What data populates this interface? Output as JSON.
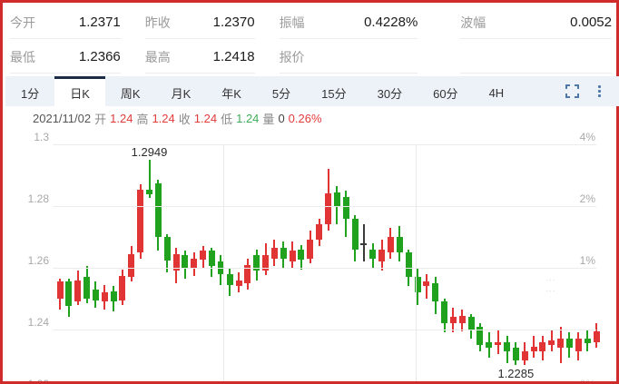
{
  "quote": {
    "cells": [
      {
        "label": "今开",
        "value": "1.2371"
      },
      {
        "label": "昨收",
        "value": "1.2370"
      },
      {
        "label": "振幅",
        "value": "0.4228%"
      },
      {
        "label": "波幅",
        "value": "0.0052"
      },
      {
        "label": "最低",
        "value": "1.2366"
      },
      {
        "label": "最高",
        "value": "1.2418"
      },
      {
        "label": "报价",
        "value": ""
      },
      {
        "label": "",
        "value": ""
      }
    ]
  },
  "tabs": [
    {
      "label": "1分",
      "active": false
    },
    {
      "label": "日K",
      "active": true
    },
    {
      "label": "周K",
      "active": false
    },
    {
      "label": "月K",
      "active": false
    },
    {
      "label": "年K",
      "active": false
    },
    {
      "label": "5分",
      "active": false
    },
    {
      "label": "15分",
      "active": false
    },
    {
      "label": "30分",
      "active": false
    },
    {
      "label": "60分",
      "active": false
    },
    {
      "label": "4H",
      "active": false
    }
  ],
  "toolbar_icons": {
    "fullscreen": "fullscreen-icon",
    "menu": "kebab-menu-icon"
  },
  "info_line": [
    {
      "text": "2021/11/02",
      "tone": "date"
    },
    {
      "text": "开",
      "tone": "label"
    },
    {
      "text": "1.24",
      "tone": "up"
    },
    {
      "text": "高",
      "tone": "label"
    },
    {
      "text": "1.24",
      "tone": "up"
    },
    {
      "text": "收",
      "tone": "label"
    },
    {
      "text": "1.24",
      "tone": "up"
    },
    {
      "text": "低",
      "tone": "label"
    },
    {
      "text": "1.24",
      "tone": "down"
    },
    {
      "text": "量",
      "tone": "label"
    },
    {
      "text": "0",
      "tone": "neutral"
    },
    {
      "text": "0.26%",
      "tone": "up"
    }
  ],
  "watermark_text": "⋮⋮",
  "chart_data": {
    "type": "candlestick",
    "title": "",
    "y_axis_left": [
      "1.3",
      "1.28",
      "1.26",
      "1.24"
    ],
    "y_axis_left_partial": "1.22",
    "y_axis_right": [
      "4%",
      "2%",
      "1%"
    ],
    "y_axis_right_partial": "0%",
    "price_top_line": 1.3,
    "price_step_per_line": 0.02,
    "ylim": [
      1.222,
      1.302
    ],
    "grid": true,
    "colors": {
      "up": "#e13434",
      "down": "#21a21f",
      "doji_dark": "#3a3a3a"
    },
    "annotations": [
      {
        "text": "1.2949",
        "candle_index": 10,
        "placement": "above"
      },
      {
        "text": "1.2285",
        "candle_index": 51,
        "placement": "below"
      }
    ],
    "candles_format": [
      "open",
      "high",
      "low",
      "close",
      "optional:dark"
    ],
    "candles": [
      [
        1.25,
        1.2565,
        1.2465,
        1.2555
      ],
      [
        1.2555,
        1.2565,
        1.244,
        1.2475
      ],
      [
        1.249,
        1.259,
        1.248,
        1.256
      ],
      [
        1.257,
        1.2605,
        1.2485,
        1.25
      ],
      [
        1.253,
        1.2555,
        1.247,
        1.2495
      ],
      [
        1.249,
        1.2545,
        1.2465,
        1.252
      ],
      [
        1.2525,
        1.254,
        1.246,
        1.249
      ],
      [
        1.2495,
        1.2595,
        1.248,
        1.2575
      ],
      [
        1.257,
        1.267,
        1.2555,
        1.2645
      ],
      [
        1.265,
        1.287,
        1.263,
        1.2852
      ],
      [
        1.2852,
        1.2949,
        1.2825,
        1.2838
      ],
      [
        1.2875,
        1.2885,
        1.2655,
        1.27
      ],
      [
        1.27,
        1.271,
        1.2585,
        1.2625
      ],
      [
        1.259,
        1.2665,
        1.255,
        1.2645
      ],
      [
        1.264,
        1.2655,
        1.2565,
        1.26
      ],
      [
        1.26,
        1.265,
        1.2575,
        1.263
      ],
      [
        1.2625,
        1.267,
        1.26,
        1.2655
      ],
      [
        1.2655,
        1.2665,
        1.257,
        1.2605
      ],
      [
        1.262,
        1.264,
        1.2545,
        1.258
      ],
      [
        1.258,
        1.26,
        1.251,
        1.2545
      ],
      [
        1.254,
        1.2585,
        1.252,
        1.256
      ],
      [
        1.255,
        1.263,
        1.253,
        1.261
      ],
      [
        1.264,
        1.266,
        1.256,
        1.259
      ],
      [
        1.259,
        1.268,
        1.2575,
        1.264
      ],
      [
        1.263,
        1.269,
        1.2605,
        1.2665
      ],
      [
        1.2665,
        1.2685,
        1.26,
        1.263
      ],
      [
        1.262,
        1.2685,
        1.26,
        1.2655
      ],
      [
        1.266,
        1.2675,
        1.2595,
        1.2625
      ],
      [
        1.263,
        1.272,
        1.2615,
        1.269
      ],
      [
        1.269,
        1.276,
        1.267,
        1.274
      ],
      [
        1.274,
        1.292,
        1.272,
        1.284
      ],
      [
        1.2845,
        1.2865,
        1.274,
        1.28
      ],
      [
        1.283,
        1.285,
        1.27,
        1.276
      ],
      [
        1.276,
        1.277,
        1.262,
        1.266
      ],
      [
        1.268,
        1.274,
        1.262,
        1.268,
        "dark"
      ],
      [
        1.266,
        1.268,
        1.26,
        1.263
      ],
      [
        1.262,
        1.269,
        1.259,
        1.266
      ],
      [
        1.265,
        1.273,
        1.263,
        1.27
      ],
      [
        1.27,
        1.2735,
        1.262,
        1.265
      ],
      [
        1.265,
        1.266,
        1.254,
        1.257
      ],
      [
        1.257,
        1.26,
        1.248,
        1.252
      ],
      [
        1.254,
        1.258,
        1.25,
        1.2555
      ],
      [
        1.255,
        1.257,
        1.245,
        1.249
      ],
      [
        1.249,
        1.25,
        1.239,
        1.242
      ],
      [
        1.242,
        1.247,
        1.239,
        1.244
      ],
      [
        1.242,
        1.2465,
        1.2395,
        1.2445
      ],
      [
        1.244,
        1.245,
        1.237,
        1.24
      ],
      [
        1.241,
        1.242,
        1.233,
        1.235
      ],
      [
        1.236,
        1.239,
        1.231,
        1.234
      ],
      [
        1.235,
        1.24,
        1.232,
        1.236
      ],
      [
        1.236,
        1.238,
        1.229,
        1.233
      ],
      [
        1.234,
        1.236,
        1.2285,
        1.23
      ],
      [
        1.23,
        1.236,
        1.2285,
        1.233
      ],
      [
        1.233,
        1.238,
        1.231,
        1.2345
      ],
      [
        1.233,
        1.238,
        1.23,
        1.236
      ],
      [
        1.235,
        1.24,
        1.233,
        1.2365
      ],
      [
        1.234,
        1.241,
        1.229,
        1.237
      ],
      [
        1.237,
        1.239,
        1.231,
        1.234
      ],
      [
        1.233,
        1.239,
        1.23,
        1.237
      ],
      [
        1.237,
        1.24,
        1.233,
        1.2355
      ],
      [
        1.236,
        1.242,
        1.234,
        1.2395
      ]
    ]
  }
}
